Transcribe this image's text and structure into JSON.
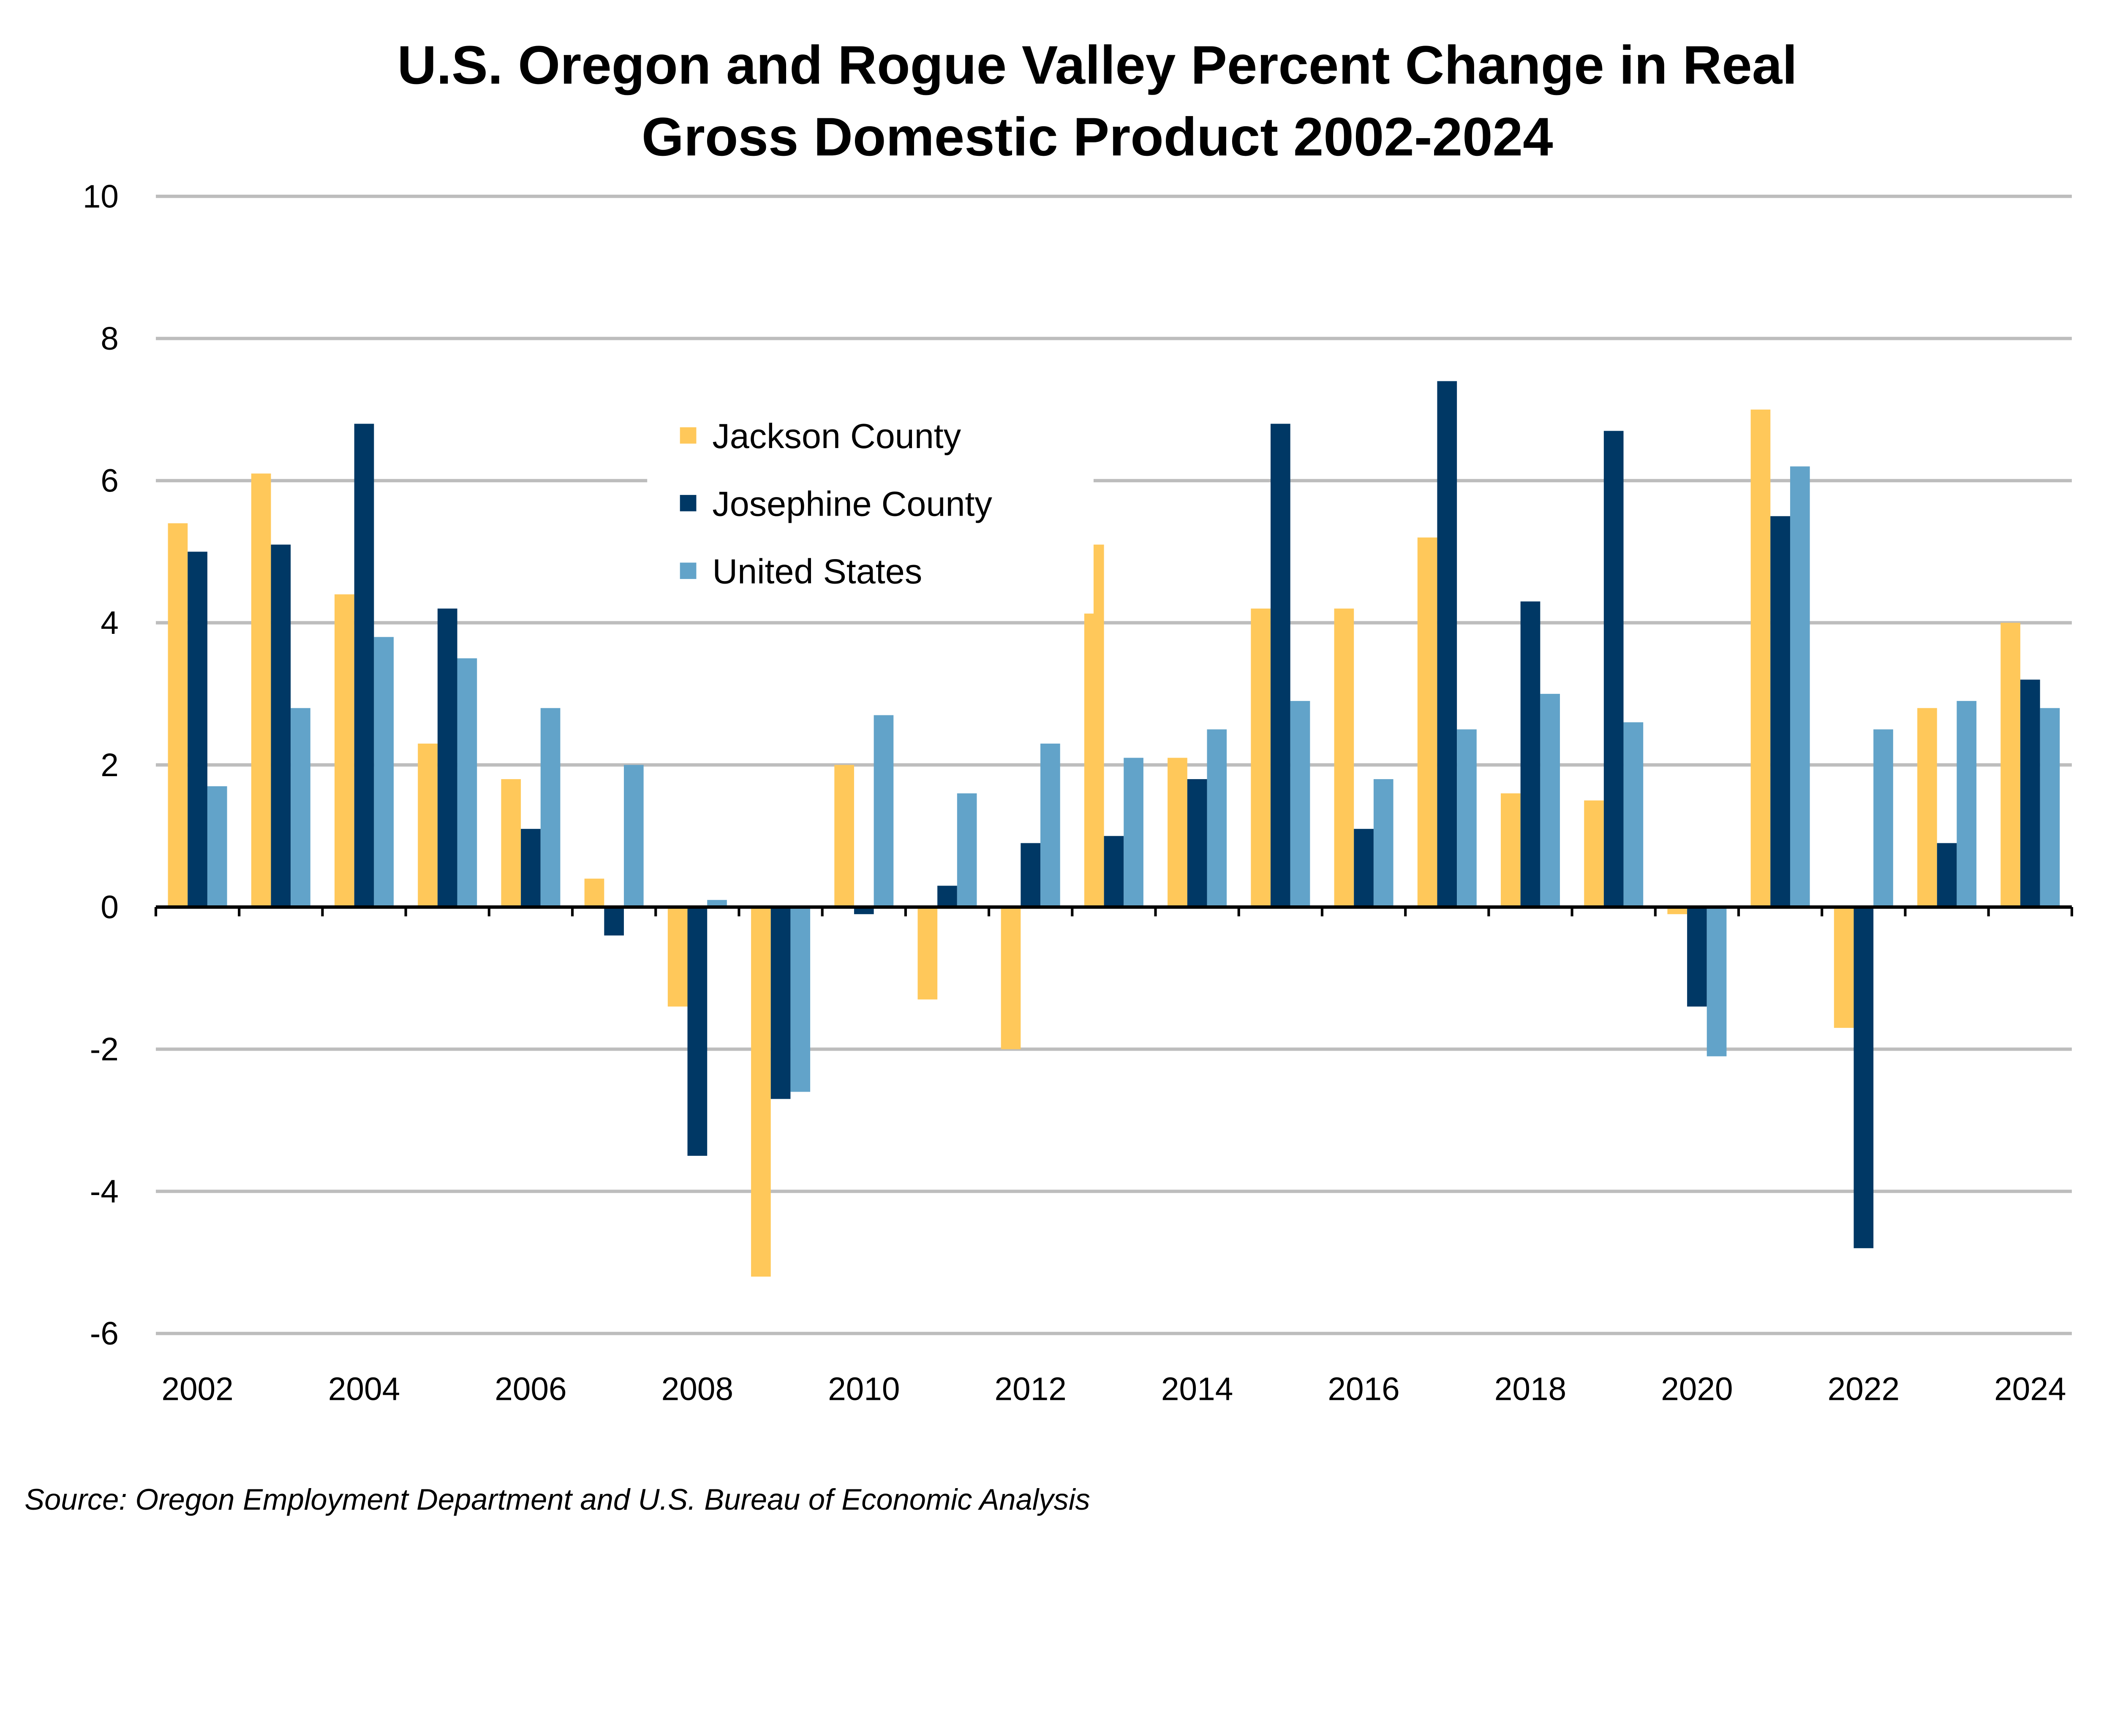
{
  "chart_data": {
    "type": "bar",
    "title": [
      "U.S. Oregon and Rogue Valley Percent Change in Real",
      "Gross Domestic Product 2002-2024"
    ],
    "xlabel": "",
    "ylabel": "",
    "ylim": [
      -6,
      10
    ],
    "yticks": [
      10,
      8,
      6,
      4,
      2,
      0,
      -2,
      -4,
      -6
    ],
    "grid": true,
    "legend_position": "upper-center",
    "categories": [
      "2002",
      "2003",
      "2004",
      "2005",
      "2006",
      "2007",
      "2008",
      "2009",
      "2010",
      "2011",
      "2012",
      "2013",
      "2014",
      "2015",
      "2016",
      "2017",
      "2018",
      "2019",
      "2020",
      "2021",
      "2022",
      "2023",
      "2024"
    ],
    "xtick_labels": [
      "2002",
      "2004",
      "2006",
      "2008",
      "2010",
      "2012",
      "2014",
      "2016",
      "2018",
      "2020",
      "2022",
      "2024"
    ],
    "series": [
      {
        "name": "Jackson County",
        "color": "#FFC85A",
        "values": [
          5.4,
          6.1,
          4.4,
          2.3,
          1.8,
          0.4,
          -1.4,
          -5.2,
          2.0,
          -1.3,
          -2.0,
          5.1,
          2.1,
          4.2,
          4.2,
          5.2,
          1.6,
          1.5,
          -0.1,
          7.0,
          -1.7,
          2.8,
          4.0
        ]
      },
      {
        "name": "Josephine County",
        "color": "#003865",
        "values": [
          5.0,
          5.1,
          6.8,
          4.2,
          1.1,
          -0.4,
          -3.5,
          -2.7,
          -0.1,
          0.3,
          0.9,
          1.0,
          1.8,
          6.8,
          1.1,
          7.4,
          4.3,
          6.7,
          -1.4,
          5.5,
          -4.8,
          0.9,
          3.2
        ]
      },
      {
        "name": "United States",
        "color": "#62A3C9",
        "values": [
          1.7,
          2.8,
          3.8,
          3.5,
          2.8,
          2.0,
          0.1,
          -2.6,
          2.7,
          1.6,
          2.3,
          2.1,
          2.5,
          2.9,
          1.8,
          2.5,
          3.0,
          2.6,
          -2.1,
          6.2,
          2.5,
          2.9,
          2.8
        ]
      }
    ],
    "source": "Source: Oregon Employment Department and U.S. Bureau of Economic Analysis"
  }
}
